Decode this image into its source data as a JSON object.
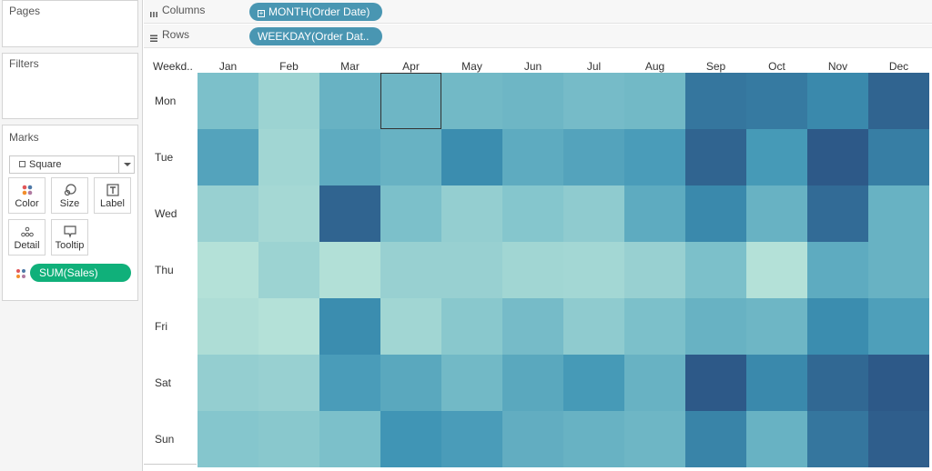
{
  "panels": {
    "pages": "Pages",
    "filters": "Filters",
    "marks": "Marks"
  },
  "marks": {
    "mark_type": "Square",
    "buttons": [
      "Color",
      "Size",
      "Label",
      "Detail",
      "Tooltip"
    ],
    "field_pill": "SUM(Sales)"
  },
  "shelves": {
    "columns_label": "Columns",
    "columns_pill": "MONTH(Order Date)",
    "rows_label": "Rows",
    "rows_pill": "WEEKDAY(Order Dat.."
  },
  "colors": {
    "pill_blue": "#4996b2",
    "pill_green": "#10b07a",
    "scale_low": "#bde6da",
    "scale_high": "#2c5585"
  },
  "chart_data": {
    "type": "heatmap",
    "corner_label": "Weekd..",
    "categories": [
      "Jan",
      "Feb",
      "Mar",
      "Apr",
      "May",
      "Jun",
      "Jul",
      "Aug",
      "Sep",
      "Oct",
      "Nov",
      "Dec"
    ],
    "rows": [
      "Mon",
      "Tue",
      "Wed",
      "Thu",
      "Fri",
      "Sat",
      "Sun"
    ],
    "values": [
      [
        0.35,
        0.18,
        0.45,
        0.42,
        0.4,
        0.42,
        0.38,
        0.4,
        0.82,
        0.8,
        0.72,
        0.92
      ],
      [
        0.55,
        0.15,
        0.5,
        0.45,
        0.7,
        0.5,
        0.55,
        0.6,
        0.92,
        0.62,
        0.98,
        0.78
      ],
      [
        0.2,
        0.13,
        0.92,
        0.35,
        0.22,
        0.3,
        0.25,
        0.5,
        0.72,
        0.45,
        0.88,
        0.45
      ],
      [
        0.05,
        0.18,
        0.06,
        0.2,
        0.2,
        0.15,
        0.14,
        0.2,
        0.35,
        0.05,
        0.5,
        0.45
      ],
      [
        0.08,
        0.05,
        0.7,
        0.15,
        0.28,
        0.38,
        0.25,
        0.35,
        0.45,
        0.42,
        0.7,
        0.58
      ],
      [
        0.22,
        0.2,
        0.6,
        0.52,
        0.4,
        0.52,
        0.62,
        0.45,
        0.98,
        0.72,
        0.9,
        0.98
      ],
      [
        0.3,
        0.28,
        0.35,
        0.65,
        0.6,
        0.48,
        0.45,
        0.42,
        0.75,
        0.45,
        0.82,
        0.95
      ]
    ],
    "selected_cell": {
      "row": "Mon",
      "column": "Apr"
    }
  }
}
